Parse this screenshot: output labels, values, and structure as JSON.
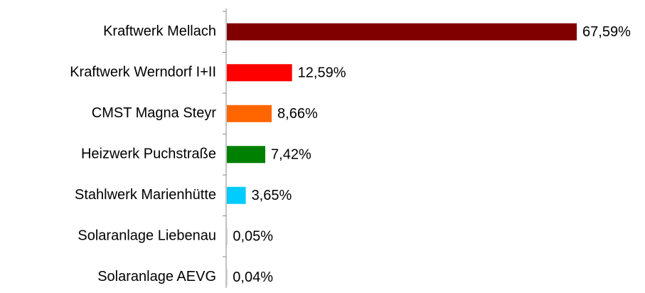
{
  "chart_data": {
    "type": "bar",
    "orientation": "horizontal",
    "categories": [
      "Kraftwerk Mellach",
      "Kraftwerk Werndorf I+II",
      "CMST Magna Steyr",
      "Heizwerk Puchstraße",
      "Stahlwerk Marienhütte",
      "Solaranlage Liebenau",
      "Solaranlage AEVG"
    ],
    "values": [
      67.59,
      12.59,
      8.66,
      7.42,
      3.65,
      0.05,
      0.04
    ],
    "value_labels": [
      "67,59%",
      "12,59%",
      "8,66%",
      "7,42%",
      "3,65%",
      "0,05%",
      "0,04%"
    ],
    "colors": [
      "#800000",
      "#ff0000",
      "#ff6600",
      "#008000",
      "#00ccff",
      "#808080",
      "#808080"
    ]
  }
}
